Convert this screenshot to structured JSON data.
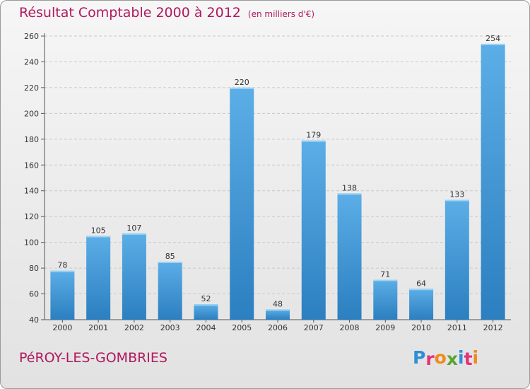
{
  "chart_data": {
    "type": "bar",
    "title": "Résultat Comptable 2000 à 2012",
    "subtitle": "(en milliers d'€)",
    "categories": [
      "2000",
      "2001",
      "2002",
      "2003",
      "2004",
      "2005",
      "2006",
      "2007",
      "2008",
      "2009",
      "2010",
      "2011",
      "2012"
    ],
    "values": [
      78,
      105,
      107,
      85,
      52,
      220,
      48,
      179,
      138,
      71,
      64,
      133,
      254
    ],
    "ylim": [
      40,
      260
    ],
    "yticks": [
      40,
      60,
      80,
      100,
      120,
      140,
      160,
      180,
      200,
      220,
      240,
      260
    ],
    "xlabel": "",
    "ylabel": "",
    "grid": true,
    "bar_color_top": "#5baee6",
    "bar_color_bottom": "#2c7fc0"
  },
  "place_name": "PéROY-LES-GOMBRIES",
  "logo": {
    "text": "Proxiti",
    "colors": [
      "#2e8fd6",
      "#e2327a",
      "#f08a1c",
      "#5aa52e",
      "#2e8fd6",
      "#e2327a",
      "#f08a1c"
    ]
  },
  "colors": {
    "title": "#b0195f",
    "axis": "#555555",
    "grid": "#c8c8c8"
  }
}
